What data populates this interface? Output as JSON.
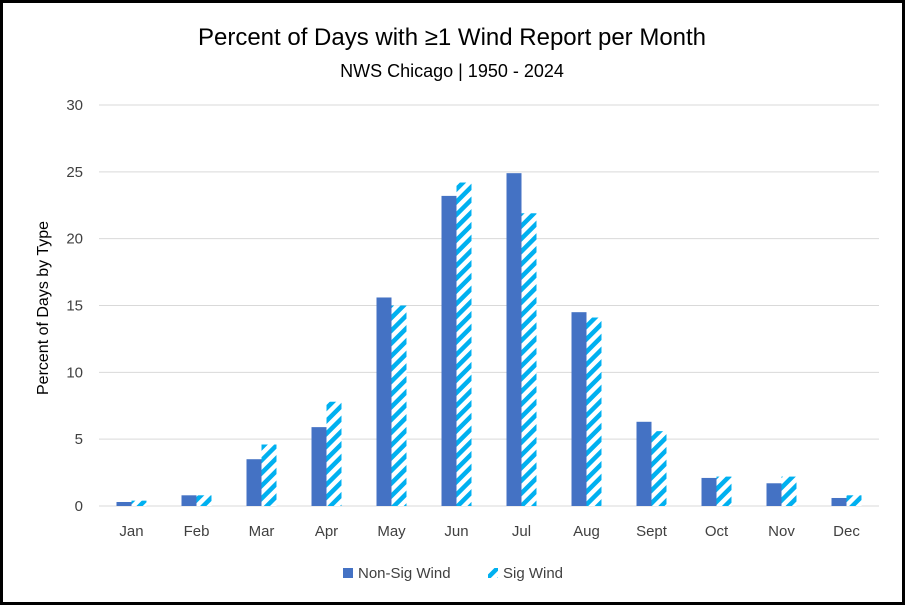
{
  "chart_data": {
    "type": "bar",
    "title": "Percent of Days with ≥1 Wind Report per Month",
    "subtitle": "NWS Chicago | 1950 - 2024",
    "xlabel": "",
    "ylabel": "Percent of Days by Type",
    "ylim": [
      0,
      30
    ],
    "yticks": [
      "0",
      "5",
      "10",
      "15",
      "20",
      "25",
      "30"
    ],
    "grid": true,
    "legend_position": "bottom",
    "categories": [
      "Jan",
      "Feb",
      "Mar",
      "Apr",
      "May",
      "Jun",
      "Jul",
      "Aug",
      "Sept",
      "Oct",
      "Nov",
      "Dec"
    ],
    "series": [
      {
        "name": "Non-Sig Wind",
        "style": "solid",
        "color": "#4472c4",
        "values": [
          0.3,
          0.8,
          3.5,
          5.9,
          15.6,
          23.2,
          24.9,
          14.5,
          6.3,
          2.1,
          1.7,
          0.6
        ]
      },
      {
        "name": "Sig Wind",
        "style": "diagonal-stripes",
        "color": "#00b0f0",
        "values": [
          0.4,
          0.8,
          4.6,
          7.8,
          15.0,
          24.2,
          21.9,
          14.1,
          5.6,
          2.2,
          2.2,
          0.8
        ]
      }
    ]
  }
}
